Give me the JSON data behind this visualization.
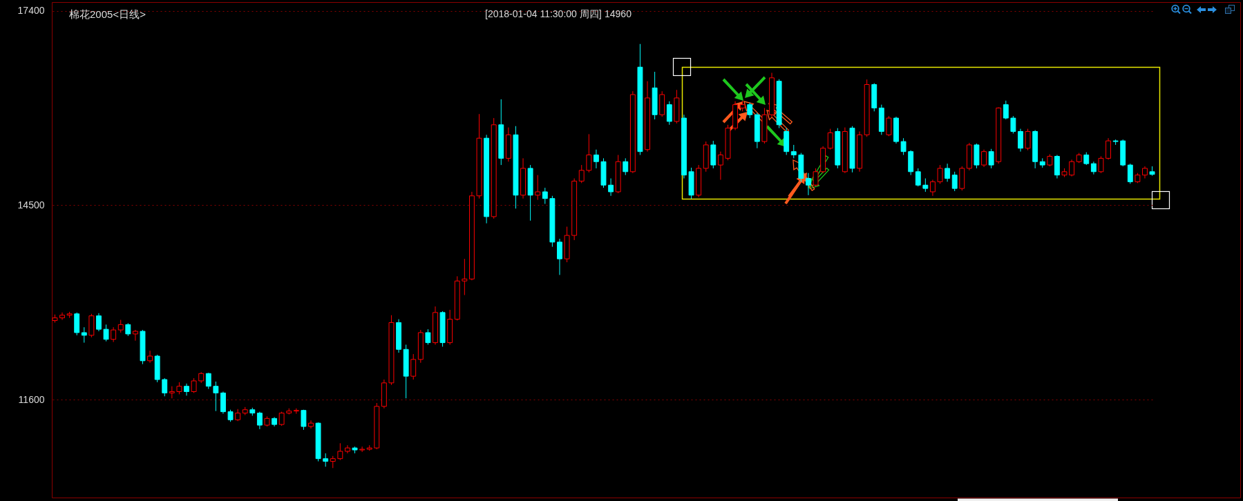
{
  "chart_data": {
    "type": "candlestick",
    "title": "棉花2005<日线>",
    "subtitle": "[2018-01-04 11:30:00 周四]",
    "annotations": [
      "14960"
    ],
    "categories": [
      null,
      null,
      null,
      null,
      null,
      null,
      null,
      null,
      null,
      null,
      null,
      null,
      null,
      null,
      null,
      null,
      null,
      null,
      null,
      null,
      null,
      null,
      null,
      null,
      null,
      null,
      null,
      null,
      null,
      null,
      null,
      null,
      null,
      null,
      null,
      null,
      null,
      null,
      null,
      null,
      null,
      null,
      null,
      null,
      null,
      null,
      null,
      null,
      null,
      null,
      null,
      null,
      null,
      null,
      null,
      null,
      null,
      null,
      null,
      null,
      null,
      null,
      null,
      null,
      null,
      null,
      null,
      null,
      null,
      null,
      null,
      null,
      null,
      null,
      null,
      null,
      null,
      null,
      null,
      null,
      null,
      null,
      null,
      null,
      null,
      null,
      null,
      null,
      null,
      null,
      null,
      null,
      null,
      null,
      null,
      null,
      null,
      null,
      null,
      null,
      null,
      null,
      null,
      null,
      null,
      null,
      null,
      null,
      null,
      null,
      null,
      null,
      null,
      null,
      null,
      null,
      null,
      null,
      null,
      null,
      null,
      null,
      null,
      null,
      null,
      null,
      null,
      null,
      null,
      null,
      null,
      null,
      null,
      null,
      null,
      null,
      null,
      null,
      null,
      null,
      null,
      null,
      null,
      null,
      null,
      null,
      null,
      null,
      null,
      null,
      null
    ],
    "ohlc": [
      [
        12780,
        12870,
        12750,
        12820
      ],
      [
        12820,
        12900,
        12790,
        12860
      ],
      [
        12860,
        12910,
        12820,
        12880
      ],
      [
        12880,
        12900,
        12560,
        12600
      ],
      [
        12600,
        12680,
        12450,
        12560
      ],
      [
        12560,
        12880,
        12530,
        12850
      ],
      [
        12850,
        12890,
        12620,
        12650
      ],
      [
        12650,
        12720,
        12470,
        12500
      ],
      [
        12500,
        12680,
        12460,
        12640
      ],
      [
        12640,
        12790,
        12600,
        12720
      ],
      [
        12720,
        12740,
        12550,
        12580
      ],
      [
        12580,
        12640,
        12480,
        12620
      ],
      [
        12620,
        12640,
        12130,
        12180
      ],
      [
        12180,
        12330,
        12150,
        12250
      ],
      [
        12250,
        12270,
        11860,
        11900
      ],
      [
        11900,
        11920,
        11650,
        11700
      ],
      [
        11700,
        11800,
        11620,
        11720
      ],
      [
        11720,
        11860,
        11680,
        11800
      ],
      [
        11800,
        11840,
        11660,
        11720
      ],
      [
        11720,
        11920,
        11700,
        11880
      ],
      [
        11880,
        12010,
        11850,
        11990
      ],
      [
        11990,
        12000,
        11760,
        11800
      ],
      [
        11800,
        11870,
        11430,
        11700
      ],
      [
        11700,
        11720,
        11390,
        11420
      ],
      [
        11420,
        11450,
        11270,
        11300
      ],
      [
        11300,
        11460,
        11280,
        11400
      ],
      [
        11400,
        11490,
        11370,
        11450
      ],
      [
        11450,
        11480,
        11360,
        11400
      ],
      [
        11400,
        11420,
        11160,
        11220
      ],
      [
        11220,
        11350,
        11200,
        11320
      ],
      [
        11320,
        11340,
        11200,
        11230
      ],
      [
        11230,
        11420,
        11210,
        11400
      ],
      [
        11400,
        11470,
        11380,
        11430
      ],
      [
        11430,
        11470,
        11390,
        11440
      ],
      [
        11440,
        11450,
        11150,
        11200
      ],
      [
        11200,
        11290,
        11170,
        11250
      ],
      [
        11250,
        11260,
        10680,
        10720
      ],
      [
        10720,
        10800,
        10600,
        10680
      ],
      [
        10680,
        10760,
        10580,
        10720
      ],
      [
        10720,
        10950,
        10700,
        10830
      ],
      [
        10830,
        10920,
        10800,
        10880
      ],
      [
        10880,
        10900,
        10800,
        10850
      ],
      [
        10850,
        10900,
        10820,
        10860
      ],
      [
        10860,
        10920,
        10840,
        10880
      ],
      [
        10880,
        11550,
        10860,
        11500
      ],
      [
        11500,
        11900,
        11470,
        11850
      ],
      [
        11850,
        12860,
        11820,
        12750
      ],
      [
        12750,
        12800,
        12300,
        12350
      ],
      [
        12350,
        12420,
        11620,
        11950
      ],
      [
        11950,
        12280,
        11900,
        12200
      ],
      [
        12200,
        12640,
        12150,
        12600
      ],
      [
        12600,
        12650,
        12420,
        12450
      ],
      [
        12450,
        12990,
        12420,
        12900
      ],
      [
        12900,
        12920,
        12390,
        12450
      ],
      [
        12450,
        12940,
        12420,
        12800
      ],
      [
        12800,
        13440,
        12780,
        13370
      ],
      [
        13370,
        13700,
        13160,
        13400
      ],
      [
        13400,
        14700,
        13380,
        14640
      ],
      [
        14640,
        15860,
        14600,
        15500
      ],
      [
        15500,
        15550,
        14230,
        14330
      ],
      [
        14330,
        15800,
        14300,
        15700
      ],
      [
        15700,
        16080,
        15100,
        15200
      ],
      [
        15200,
        15660,
        15150,
        15550
      ],
      [
        15550,
        15680,
        14450,
        14650
      ],
      [
        14650,
        15200,
        14600,
        15050
      ],
      [
        15050,
        15100,
        14270,
        14650
      ],
      [
        14650,
        14950,
        14580,
        14700
      ],
      [
        14700,
        14760,
        14520,
        14600
      ],
      [
        14600,
        14640,
        13880,
        13950
      ],
      [
        13950,
        14000,
        13460,
        13700
      ],
      [
        13700,
        14180,
        13650,
        14050
      ],
      [
        14050,
        14900,
        13980,
        14860
      ],
      [
        14860,
        15100,
        14830,
        15020
      ],
      [
        15020,
        15560,
        14990,
        15250
      ],
      [
        15250,
        15330,
        15050,
        15150
      ],
      [
        15150,
        15200,
        14760,
        14800
      ],
      [
        14800,
        14900,
        14640,
        14700
      ],
      [
        14700,
        15250,
        14680,
        15150
      ],
      [
        15150,
        15200,
        14950,
        15000
      ],
      [
        15000,
        16200,
        14980,
        16150
      ],
      [
        16560,
        16905,
        15250,
        15300
      ],
      [
        15330,
        16350,
        15300,
        16100
      ],
      [
        16250,
        16490,
        15780,
        15850
      ],
      [
        15850,
        16200,
        15820,
        16150
      ],
      [
        16000,
        16050,
        15700,
        15750
      ],
      [
        15750,
        16220,
        15720,
        16100
      ],
      [
        15800,
        15850,
        14900,
        14950
      ],
      [
        15000,
        15060,
        14595,
        14650
      ],
      [
        14650,
        15100,
        14620,
        15050
      ],
      [
        15050,
        15450,
        15000,
        15400
      ],
      [
        15400,
        15460,
        15050,
        15100
      ],
      [
        15100,
        15300,
        14880,
        15250
      ],
      [
        15200,
        15700,
        15170,
        15650
      ],
      [
        15650,
        16050,
        15620,
        16000
      ],
      [
        15950,
        16060,
        15900,
        16000
      ],
      [
        16000,
        16030,
        15800,
        15850
      ],
      [
        15850,
        15880,
        15350,
        15450
      ],
      [
        15450,
        15950,
        15420,
        15850
      ],
      [
        15850,
        16475,
        15820,
        16400
      ],
      [
        16350,
        16380,
        15650,
        15700
      ],
      [
        15600,
        15650,
        15250,
        15300
      ],
      [
        15300,
        15400,
        15200,
        15250
      ],
      [
        15250,
        15280,
        14850,
        14900
      ],
      [
        14900,
        14980,
        14650,
        14800
      ],
      [
        14800,
        15050,
        14780,
        15000
      ],
      [
        15000,
        15380,
        14980,
        15350
      ],
      [
        15350,
        15640,
        15330,
        15580
      ],
      [
        15600,
        15650,
        15050,
        15100
      ],
      [
        15000,
        15660,
        14980,
        15600
      ],
      [
        15650,
        15680,
        14990,
        15050
      ],
      [
        15050,
        15600,
        15000,
        15550
      ],
      [
        15550,
        16375,
        15520,
        16300
      ],
      [
        16300,
        16320,
        15900,
        15950
      ],
      [
        15950,
        16000,
        15550,
        15600
      ],
      [
        15550,
        15830,
        15530,
        15800
      ],
      [
        15800,
        15820,
        15420,
        15450
      ],
      [
        15450,
        15500,
        15250,
        15300
      ],
      [
        15300,
        15320,
        14950,
        15000
      ],
      [
        15000,
        15050,
        14780,
        14800
      ],
      [
        14800,
        14900,
        14700,
        14750
      ],
      [
        14700,
        14880,
        14640,
        14850
      ],
      [
        14850,
        15100,
        14820,
        15050
      ],
      [
        15050,
        15120,
        14850,
        14900
      ],
      [
        14950,
        15000,
        14710,
        14750
      ],
      [
        14750,
        15080,
        14720,
        15050
      ],
      [
        15050,
        15430,
        15020,
        15400
      ],
      [
        15400,
        15420,
        15050,
        15100
      ],
      [
        15100,
        15330,
        15070,
        15300
      ],
      [
        15300,
        15340,
        15050,
        15100
      ],
      [
        15150,
        15960,
        15120,
        15950
      ],
      [
        16000,
        16060,
        15780,
        15800
      ],
      [
        15800,
        15830,
        15570,
        15600
      ],
      [
        15600,
        15640,
        15300,
        15350
      ],
      [
        15350,
        15640,
        15320,
        15600
      ],
      [
        15600,
        15620,
        15050,
        15150
      ],
      [
        15150,
        15200,
        15060,
        15100
      ],
      [
        15100,
        15260,
        15080,
        15230
      ],
      [
        15230,
        15250,
        14900,
        14950
      ],
      [
        14950,
        15050,
        14920,
        15000
      ],
      [
        14950,
        15180,
        14930,
        15150
      ],
      [
        15150,
        15280,
        15130,
        15250
      ],
      [
        15250,
        15290,
        15100,
        15120
      ],
      [
        15120,
        15150,
        14960,
        15000
      ],
      [
        15000,
        15230,
        14980,
        15200
      ],
      [
        15200,
        15500,
        15180,
        15460
      ],
      [
        15460,
        15480,
        15400,
        15450
      ],
      [
        15460,
        15480,
        15080,
        15100
      ],
      [
        15100,
        15120,
        14820,
        14850
      ],
      [
        14850,
        14980,
        14830,
        14950
      ],
      [
        14950,
        15080,
        14900,
        15050
      ],
      [
        15000,
        15080,
        14940,
        14960
      ]
    ],
    "colors": [
      "#ff0000",
      "#ff0000",
      "#ff0000",
      "#00ffff",
      "#00ffff",
      "#ff0000",
      "#00ffff",
      "#00ffff",
      "#ff0000",
      "#ff0000",
      "#00ffff",
      "#ff0000",
      "#00ffff",
      "#ff0000",
      "#00ffff",
      "#00ffff",
      "#ff0000",
      "#ff0000",
      "#00ffff",
      "#ff0000",
      "#ff0000",
      "#00ffff",
      "#00ffff",
      "#00ffff",
      "#00ffff",
      "#ff0000",
      "#ff0000",
      "#00ffff",
      "#00ffff",
      "#ff0000",
      "#00ffff",
      "#ff0000",
      "#ff0000",
      "#ff0000",
      "#00ffff",
      "#ff0000",
      "#00ffff",
      "#00ffff",
      "#ff0000",
      "#ff0000",
      "#ff0000",
      "#00ffff",
      "#ff0000",
      "#ff0000",
      "#ff0000",
      "#ff0000",
      "#ff0000",
      "#00ffff",
      "#00ffff",
      "#ff0000",
      "#ff0000",
      "#00ffff",
      "#ff0000",
      "#00ffff",
      "#ff0000",
      "#ff0000",
      "#ff0000",
      "#ff0000",
      "#ff0000",
      "#00ffff",
      "#ff0000",
      "#00ffff",
      "#ff0000",
      "#00ffff",
      "#ff0000",
      "#00ffff",
      "#ff0000",
      "#00ffff",
      "#00ffff",
      "#00ffff",
      "#ff0000",
      "#ff0000",
      "#ff0000",
      "#ff0000",
      "#00ffff",
      "#00ffff",
      "#00ffff",
      "#ff0000",
      "#00ffff",
      "#ff0000",
      "#00ffff",
      "#ff0000",
      "#00ffff",
      "#ff0000",
      "#00ffff",
      "#ff0000",
      "#00ffff",
      "#00ffff",
      "#ff0000",
      "#ff0000",
      "#00ffff",
      "#ff0000",
      "#ff0000",
      "#ff0000",
      "#ff0000",
      "#00ffff",
      "#00ffff",
      "#ff0000",
      "#ff0000",
      "#00ffff",
      "#00ffff",
      "#00ffff",
      "#00ffff",
      "#00ffff",
      "#ff0000",
      "#ff0000",
      "#ff0000",
      "#00ffff",
      "#ff0000",
      "#00ffff",
      "#ff0000",
      "#ff0000",
      "#00ffff",
      "#00ffff",
      "#ff0000",
      "#00ffff",
      "#00ffff",
      "#00ffff",
      "#00ffff",
      "#00ffff",
      "#ff0000",
      "#ff0000",
      "#00ffff",
      "#00ffff",
      "#ff0000",
      "#ff0000",
      "#00ffff",
      "#ff0000",
      "#00ffff",
      "#ff0000",
      "#00ffff",
      "#00ffff",
      "#00ffff",
      "#ff0000",
      "#00ffff",
      "#00ffff",
      "#ff0000",
      "#00ffff",
      "#ff0000",
      "#ff0000",
      "#ff0000",
      "#00ffff",
      "#00ffff",
      "#ff0000",
      "#ff0000",
      "#00ffff",
      "#00ffff",
      "#00ffff",
      "#ff0000",
      "#ff0000",
      "#00ffff"
    ],
    "ylim": [
      10140,
      17530
    ],
    "yticks": [
      11600,
      14500,
      17400
    ],
    "grid": "y",
    "tick_labels": "y"
  }
}
